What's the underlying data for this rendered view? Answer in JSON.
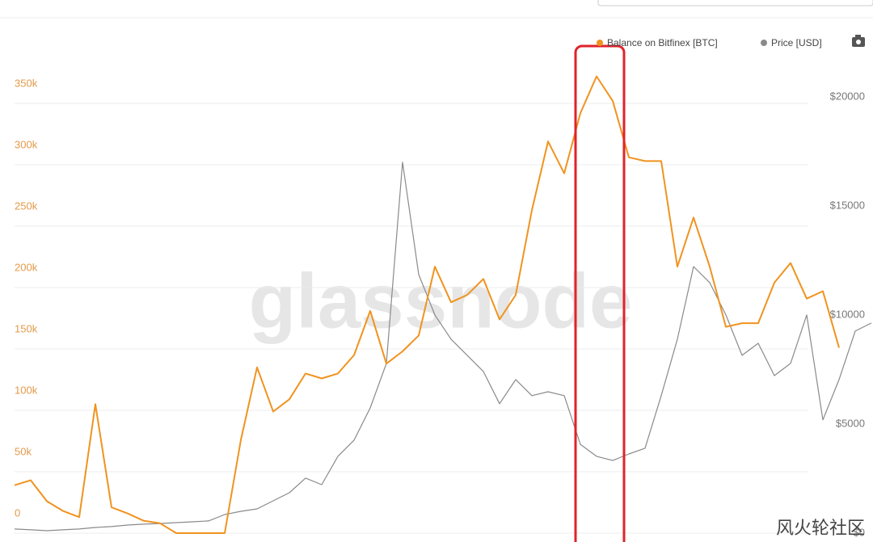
{
  "chart_data": {
    "type": "line",
    "legend": "top-right",
    "grid": true,
    "watermark": "glassnode",
    "credit": "风火轮社区",
    "categories": [
      null,
      null,
      null,
      null,
      null,
      null,
      null,
      null,
      null,
      null,
      null,
      null,
      null,
      null,
      null,
      null,
      null,
      null,
      null,
      null,
      null,
      null,
      null,
      null,
      null,
      null,
      null,
      null,
      null,
      null,
      null,
      null,
      null,
      null,
      null,
      null,
      null,
      null,
      null,
      null,
      null,
      null,
      null,
      null,
      null,
      null,
      null,
      null,
      null,
      null,
      null,
      null,
      null,
      null
    ],
    "ylim": [
      0,
      398000
    ],
    "yticks": [
      {
        "value": 0,
        "label": "0"
      },
      {
        "value": 50000,
        "label": "50k"
      },
      {
        "value": 100000,
        "label": "100k"
      },
      {
        "value": 150000,
        "label": "150k"
      },
      {
        "value": 200000,
        "label": "200k"
      },
      {
        "value": 250000,
        "label": "250k"
      },
      {
        "value": 300000,
        "label": "300k"
      },
      {
        "value": 350000,
        "label": "350k"
      }
    ],
    "y2lim": [
      0,
      22400
    ],
    "y2ticks": [
      {
        "value": 0,
        "label": "$0"
      },
      {
        "value": 5000,
        "label": "$5000"
      },
      {
        "value": 10000,
        "label": "$10000"
      },
      {
        "value": 15000,
        "label": "$15000"
      },
      {
        "value": 20000,
        "label": "$20000"
      }
    ],
    "series": [
      {
        "name": "Balance on Bitfinex [BTC]",
        "color": "#f0931f",
        "values": [
          39000,
          43000,
          26000,
          18000,
          13000,
          105000,
          21000,
          16000,
          10000,
          8000,
          0,
          0,
          0,
          0,
          76000,
          135000,
          99000,
          109000,
          130000,
          126000,
          130000,
          145000,
          181000,
          138000,
          148000,
          161000,
          217000,
          188000,
          194000,
          207000,
          174000,
          194000,
          263000,
          319000,
          293000,
          342000,
          372000,
          352000,
          306000,
          303000,
          303000,
          217000,
          257000,
          217000,
          168000,
          171000,
          171000,
          204000,
          220000,
          191000,
          197000,
          151000,
          null,
          null
        ]
      },
      {
        "name": "Price [USD]",
        "color": "#8a8a8a",
        "axis": "y2",
        "values": [
          190,
          150,
          110,
          150,
          190,
          260,
          300,
          370,
          410,
          440,
          480,
          520,
          560,
          850,
          1000,
          1110,
          1480,
          1850,
          2520,
          2220,
          3520,
          4260,
          5740,
          7780,
          17000,
          11850,
          10000,
          8890,
          8150,
          7410,
          5930,
          7040,
          6300,
          6480,
          6300,
          4070,
          3520,
          3330,
          3630,
          3890,
          6300,
          8890,
          12220,
          11480,
          10000,
          8150,
          8700,
          7220,
          7780,
          10000,
          5190,
          7040,
          9260,
          9630
        ]
      }
    ]
  }
}
